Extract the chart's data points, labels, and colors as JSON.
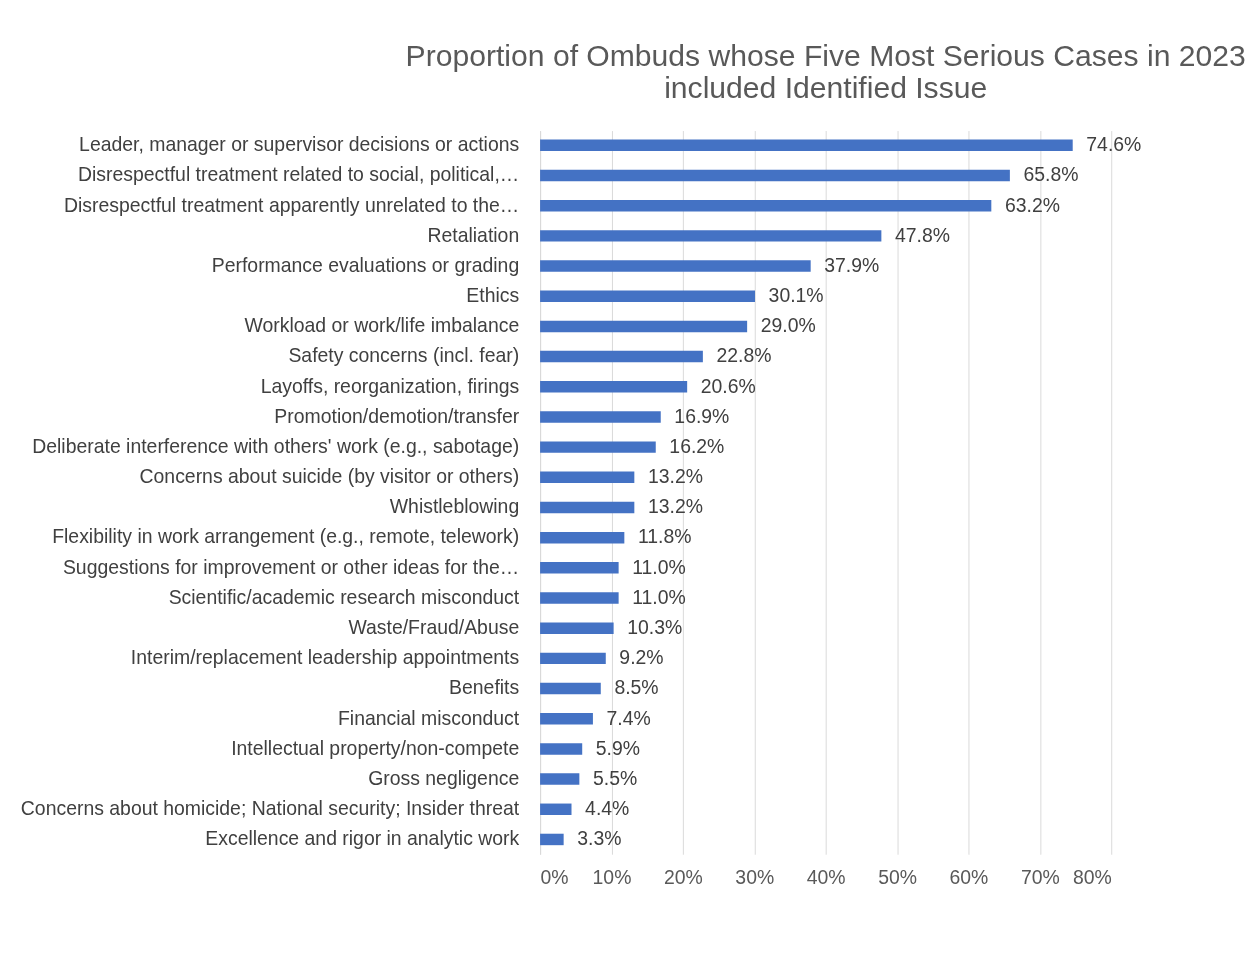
{
  "chart_data": {
    "type": "bar",
    "orientation": "horizontal",
    "title": "Proportion of Ombuds whose Five Most Serious Cases in 2023 included Identified Issue",
    "categories": [
      "Leader, manager or supervisor decisions or actions",
      "Disrespectful treatment related to social, political,…",
      "Disrespectful treatment apparently unrelated to the…",
      "Retaliation",
      "Performance evaluations or grading",
      "Ethics",
      "Workload or work/life imbalance",
      "Safety concerns (incl. fear)",
      "Layoffs, reorganization, firings",
      "Promotion/demotion/transfer",
      "Deliberate interference with others' work (e.g., sabotage)",
      "Concerns about suicide (by visitor or others)",
      "Whistleblowing",
      "Flexibility in work arrangement (e.g., remote, telework)",
      "Suggestions for improvement or other ideas for the…",
      "Scientific/academic research misconduct",
      "Waste/Fraud/Abuse",
      "Interim/replacement leadership appointments",
      "Benefits",
      "Financial misconduct",
      "Intellectual property/non-compete",
      "Gross negligence",
      "Concerns about homicide; National security; Insider threat",
      "Excellence and rigor in analytic work"
    ],
    "values": [
      74.6,
      65.8,
      63.2,
      47.8,
      37.9,
      30.1,
      29.0,
      22.8,
      20.6,
      16.9,
      16.2,
      13.2,
      13.2,
      11.8,
      11.0,
      11.0,
      10.3,
      9.2,
      8.5,
      7.4,
      5.9,
      5.5,
      4.4,
      3.3
    ],
    "value_labels": [
      "74.6%",
      "65.8%",
      "63.2%",
      "47.8%",
      "37.9%",
      "30.1%",
      "29.0%",
      "22.8%",
      "20.6%",
      "16.9%",
      "16.2%",
      "13.2%",
      "13.2%",
      "11.8%",
      "11.0%",
      "11.0%",
      "10.3%",
      "9.2%",
      "8.5%",
      "7.4%",
      "5.9%",
      "5.5%",
      "4.4%",
      "3.3%"
    ],
    "color": "#4472c4",
    "xlim": [
      0,
      80
    ],
    "xticks": [
      {
        "value": 0,
        "label": "0%"
      },
      {
        "value": 10,
        "label": "10%"
      },
      {
        "value": 20,
        "label": "20%"
      },
      {
        "value": 30,
        "label": "30%"
      },
      {
        "value": 40,
        "label": "40%"
      },
      {
        "value": 50,
        "label": "50%"
      },
      {
        "value": 60,
        "label": "60%"
      },
      {
        "value": 70,
        "label": "70%"
      },
      {
        "value": 80,
        "label": "80%"
      }
    ],
    "grid": "x"
  }
}
